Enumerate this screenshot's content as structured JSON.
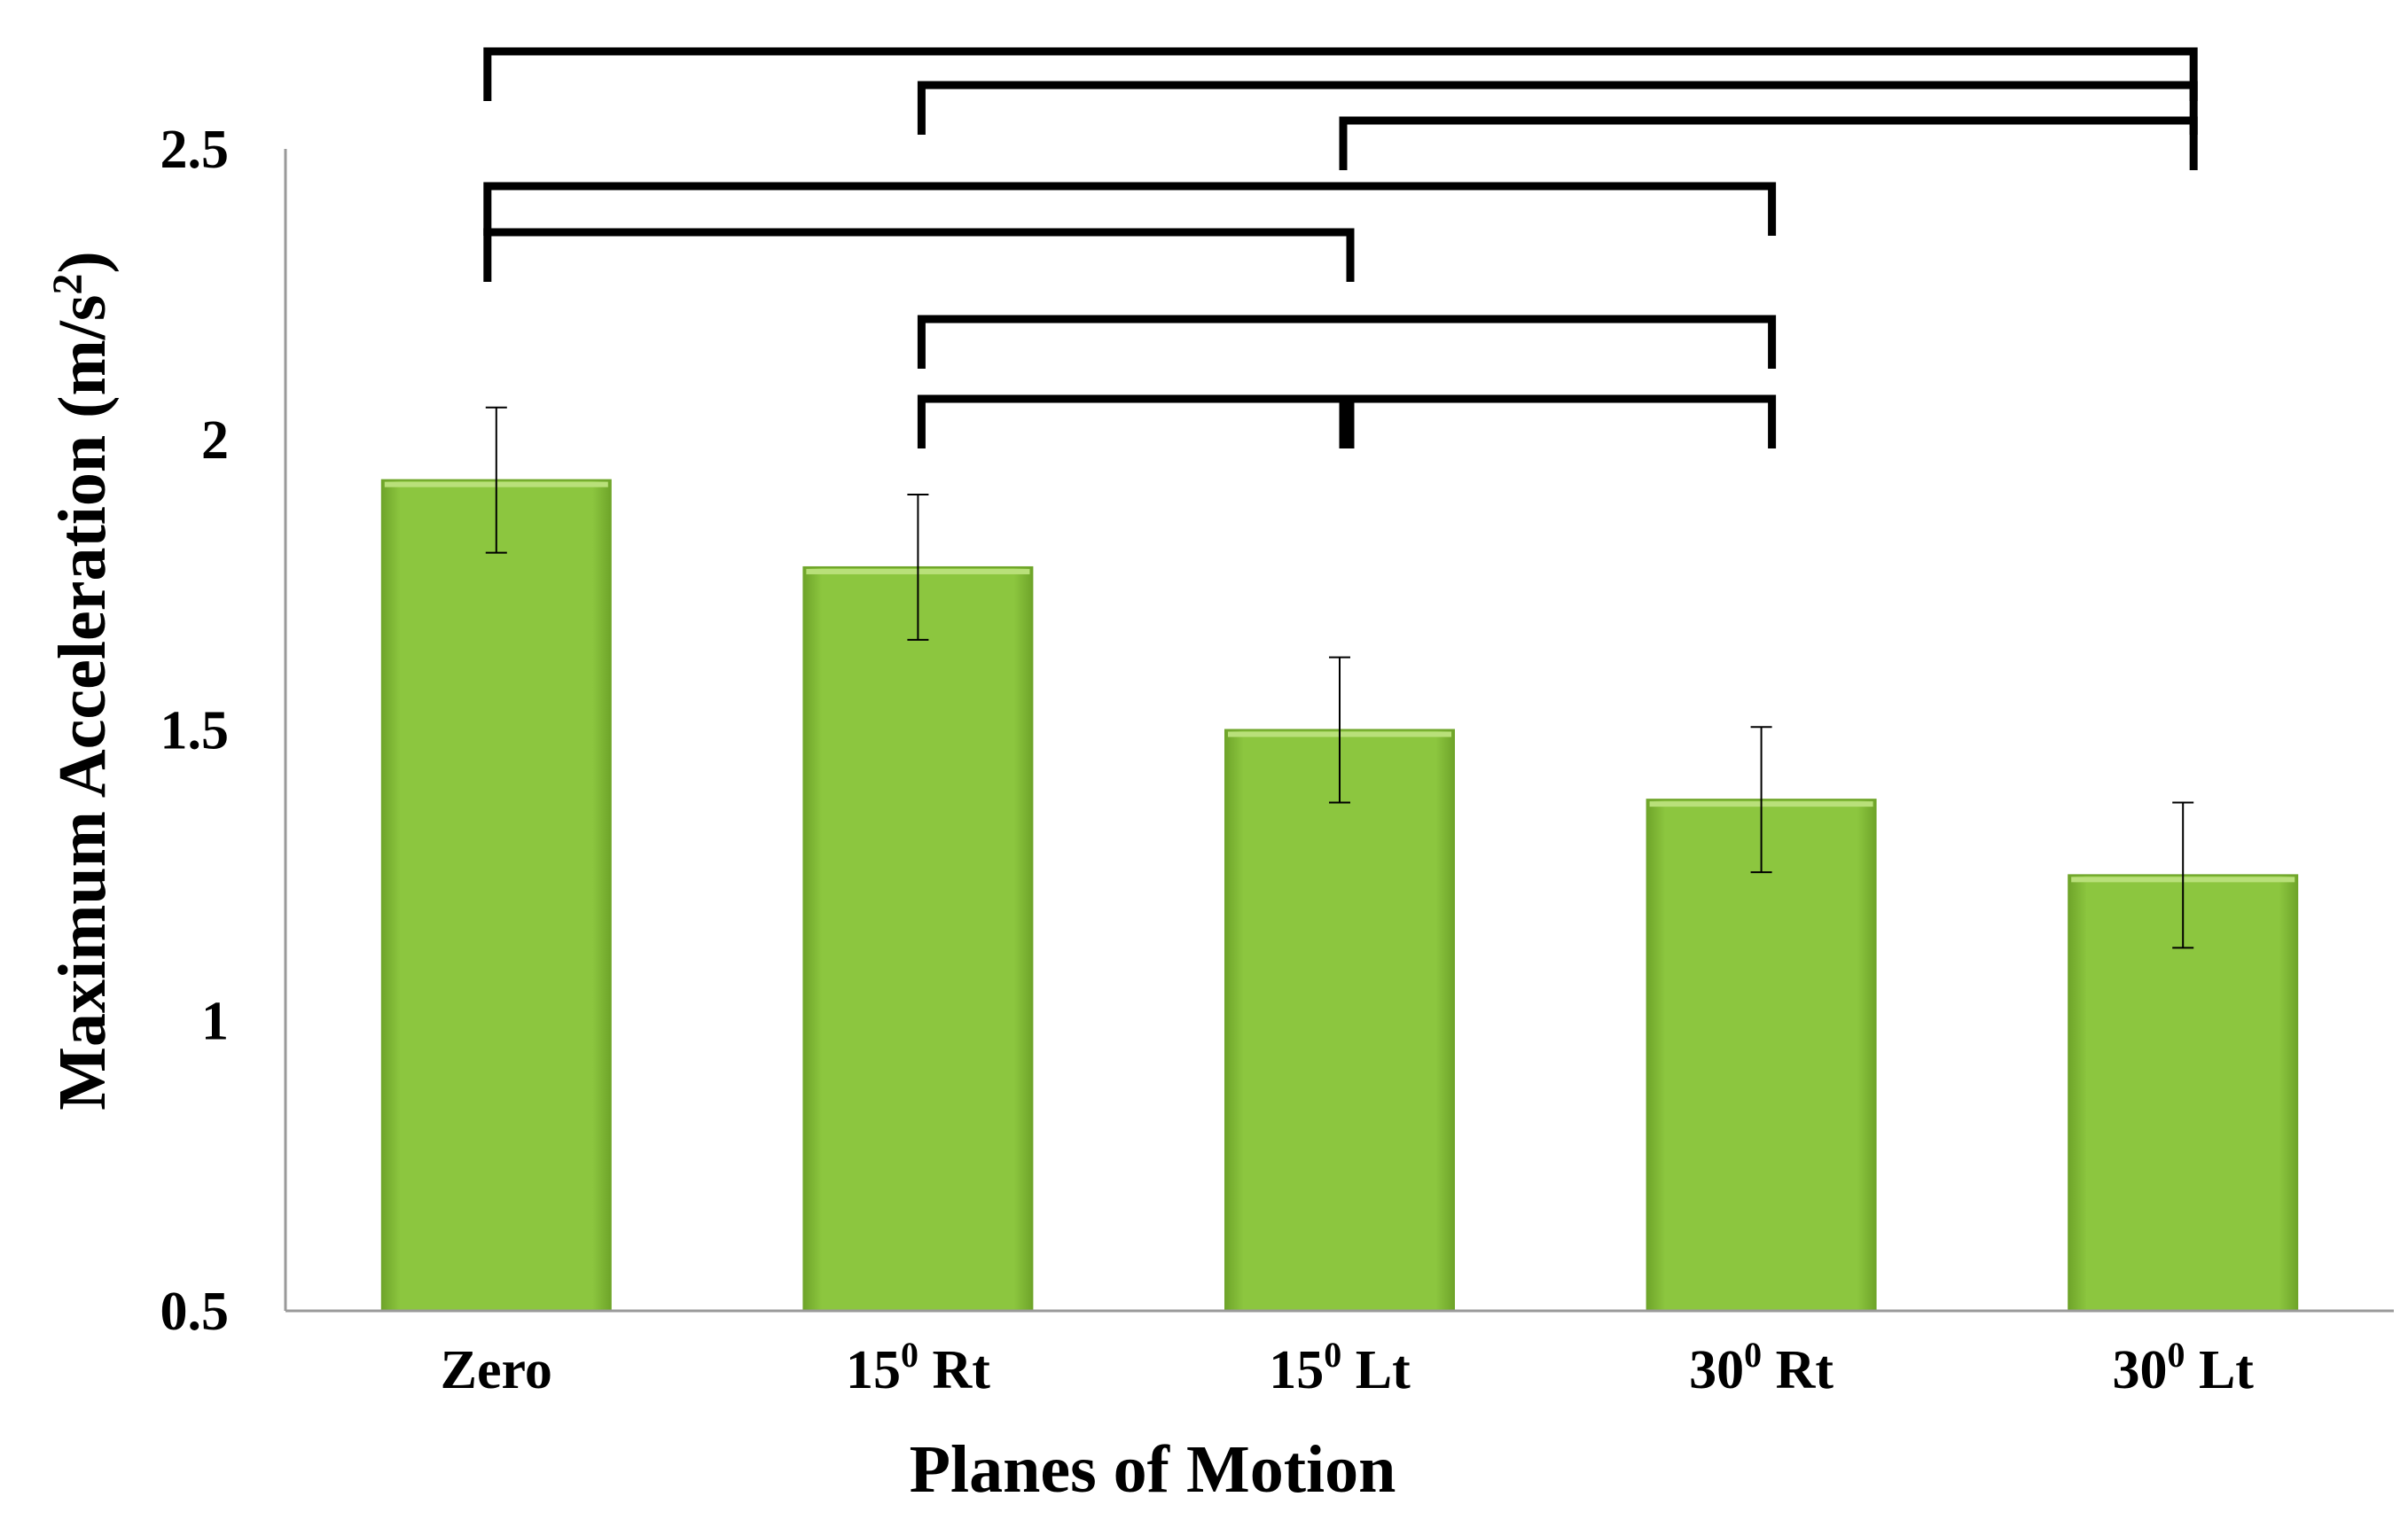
{
  "chart_data": {
    "type": "bar",
    "title": "",
    "xlabel": "Planes of Motion",
    "ylabel": "Maximum Acceleration (m/s²)",
    "ylabel_parts": {
      "main": "Maximum Acceleration (m/s",
      "sup": "2",
      "end": ")"
    },
    "ylim": [
      0.5,
      2.5
    ],
    "yticks": [
      "0.5",
      "1",
      "1.5",
      "2",
      "2.5"
    ],
    "categories": [
      {
        "base": "Zero",
        "sup": "",
        "suffix": ""
      },
      {
        "base": "15",
        "sup": "0",
        "suffix": " Rt"
      },
      {
        "base": "15",
        "sup": "0",
        "suffix": " Lt"
      },
      {
        "base": "30",
        "sup": "0",
        "suffix": " Rt"
      },
      {
        "base": "30",
        "sup": "0",
        "suffix": " Lt"
      }
    ],
    "values": [
      1.93,
      1.78,
      1.5,
      1.38,
      1.25
    ],
    "errors": [
      0.125,
      0.125,
      0.125,
      0.125,
      0.125
    ],
    "bar_color": "#8cc63f",
    "bar_color_dark": "#6fa52a",
    "significance_brackets": [
      {
        "from": 0,
        "to": 4,
        "level": 1
      },
      {
        "from": 1,
        "to": 4,
        "level": 2
      },
      {
        "from": 2,
        "to": 4,
        "level": 3
      },
      {
        "from": 0,
        "to": 3,
        "level": 4
      },
      {
        "from": 0,
        "to": 2,
        "level": 5
      },
      {
        "from": 1,
        "to": 3,
        "level": 6
      },
      {
        "from": 1,
        "to": 2,
        "level": 7
      },
      {
        "from": 2,
        "to": 3,
        "level": 7
      }
    ]
  }
}
